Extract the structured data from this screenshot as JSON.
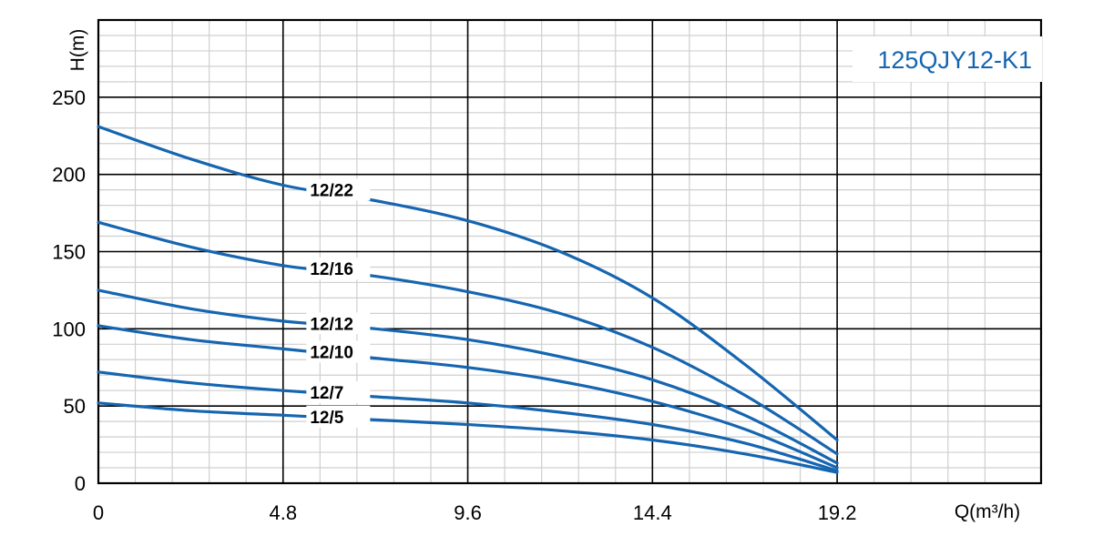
{
  "colors": {
    "curve": "#1565b0",
    "grid_major": "#000000",
    "grid_minor": "#cfcfcf",
    "model_text": "#1565b0"
  },
  "chart_data": {
    "type": "line",
    "title": "125QJY12-K1",
    "xlabel": "Q(m³/h)",
    "ylabel": "H(m)",
    "xlim": [
      0,
      24.5
    ],
    "ylim": [
      0,
      300
    ],
    "x_ticks": [
      0,
      4.8,
      9.6,
      14.4,
      19.2
    ],
    "x_tick_labels": [
      "0",
      "4.8",
      "9.6",
      "14.4",
      "19.2"
    ],
    "y_ticks": [
      0,
      50,
      100,
      150,
      200,
      250
    ],
    "y_tick_labels": [
      "0",
      "50",
      "100",
      "150",
      "200",
      "250"
    ],
    "grid": true,
    "series": [
      {
        "name": "12/22",
        "label_at": 5.5,
        "x": [
          0,
          2.4,
          4.8,
          7.2,
          9.6,
          12.0,
          14.4,
          16.8,
          19.2
        ],
        "y": [
          231,
          210,
          193,
          183,
          170,
          150,
          120,
          77,
          28
        ]
      },
      {
        "name": "12/16",
        "label_at": 5.5,
        "x": [
          0,
          2.4,
          4.8,
          7.2,
          9.6,
          12.0,
          14.4,
          16.8,
          19.2
        ],
        "y": [
          169,
          153,
          141,
          134,
          124,
          110,
          88,
          57,
          19
        ]
      },
      {
        "name": "12/12",
        "label_at": 5.5,
        "x": [
          0,
          2.4,
          4.8,
          7.2,
          9.6,
          12.0,
          14.4,
          16.8,
          19.2
        ],
        "y": [
          125,
          113,
          105,
          100,
          93,
          82,
          67,
          44,
          13
        ]
      },
      {
        "name": "12/10",
        "label_at": 5.5,
        "x": [
          0,
          2.4,
          4.8,
          7.2,
          9.6,
          12.0,
          14.4,
          16.8,
          19.2
        ],
        "y": [
          102,
          93,
          87,
          81,
          75,
          66,
          53,
          35,
          10
        ]
      },
      {
        "name": "12/7",
        "label_at": 5.5,
        "x": [
          0,
          2.4,
          4.8,
          7.2,
          9.6,
          12.0,
          14.4,
          16.8,
          19.2
        ],
        "y": [
          72,
          65,
          60,
          56,
          52,
          46,
          38,
          26,
          8
        ]
      },
      {
        "name": "12/5",
        "label_at": 5.5,
        "x": [
          0,
          2.4,
          4.8,
          7.2,
          9.6,
          12.0,
          14.4,
          16.8,
          19.2
        ],
        "y": [
          52,
          47,
          44,
          41,
          38,
          34,
          28,
          19,
          7
        ]
      }
    ]
  }
}
